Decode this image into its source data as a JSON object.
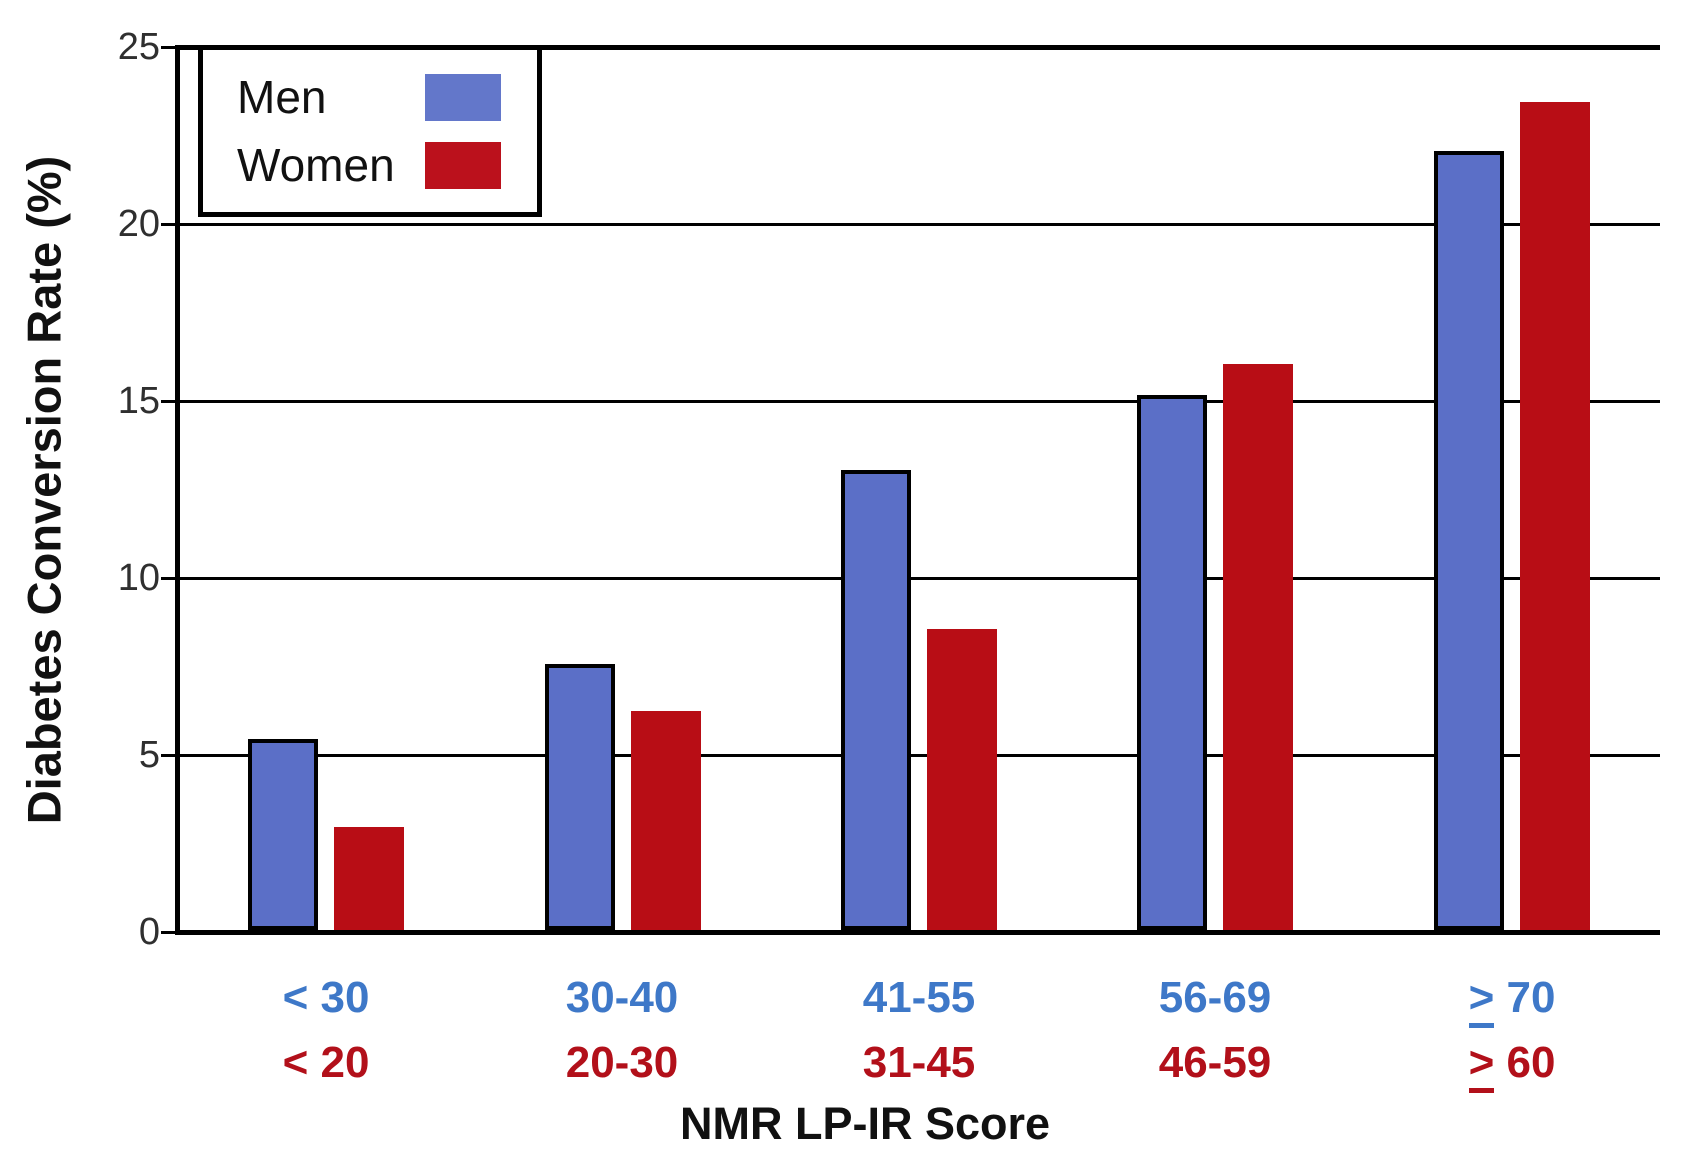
{
  "chart_data": {
    "type": "bar",
    "title": "",
    "ylabel": "Diabetes Conversion Rate (%)",
    "xlabel": "NMR LP-IR Score",
    "ylim": [
      0,
      25
    ],
    "yticks": [
      0,
      5,
      10,
      15,
      20,
      25
    ],
    "grid": "horizontal lines every 5 units, drawn behind bars",
    "legend_position": "top-left inside plot",
    "axis_color": "#000000",
    "ytick_label_color": "#2f2f2f",
    "series": [
      {
        "name": "Men",
        "bar_color": "#5b6fc7",
        "bar_border_color": "#000000",
        "tick_label_color": "#3e78c8",
        "score_ranges": [
          "< 30",
          "30-40",
          "41-55",
          "56-69",
          "≥ 70"
        ],
        "values": [
          5.4,
          7.5,
          13,
          15.1,
          22
        ]
      },
      {
        "name": "Women",
        "bar_color": "#b80d15",
        "bar_border_color": null,
        "tick_label_color": "#b2101a",
        "score_ranges": [
          "< 20",
          "20-30",
          "31-45",
          "46-59",
          "≥ 60"
        ],
        "values": [
          2.9,
          6.2,
          8.5,
          16,
          23.4
        ]
      }
    ]
  }
}
